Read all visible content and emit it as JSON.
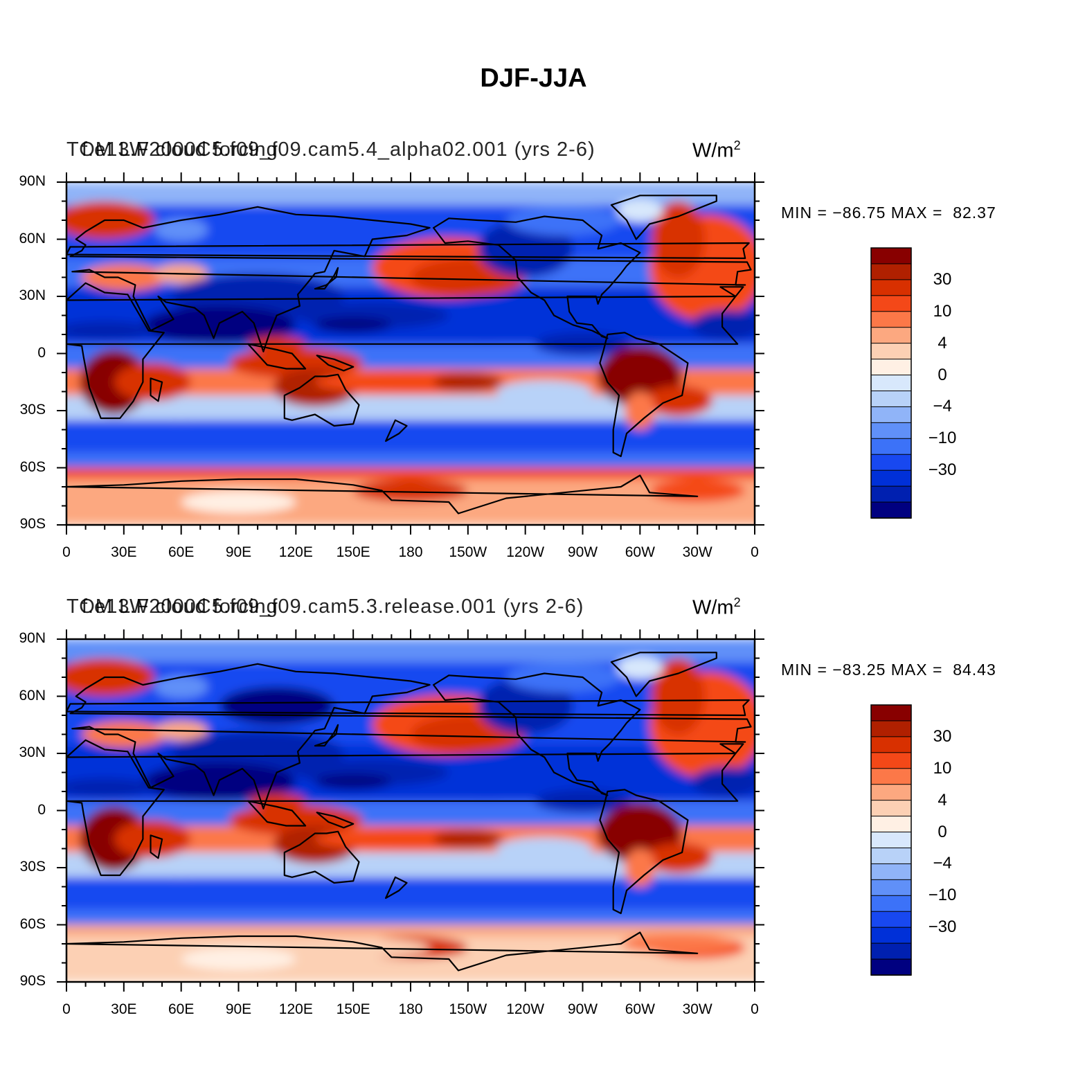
{
  "title": "DJF-JJA",
  "colors": [
    "#000080",
    "#0020b0",
    "#0030d8",
    "#1848f0",
    "#3c72f8",
    "#6090f8",
    "#90b4f8",
    "#b8d2f8",
    "#d8e8fc",
    "#fff0e4",
    "#fcd0b4",
    "#fca880",
    "#fc7848",
    "#f44818",
    "#d83000",
    "#b02000",
    "#880000"
  ],
  "levels": [
    "30",
    "10",
    "4",
    "0",
    "−4",
    "−10",
    "−30"
  ],
  "lat_ticks": [
    "90N",
    "60N",
    "30N",
    "0",
    "30S",
    "60S",
    "90S"
  ],
  "lon_ticks": [
    "0",
    "30E",
    "60E",
    "90E",
    "120E",
    "150E",
    "180",
    "150W",
    "120W",
    "90W",
    "60W",
    "30W",
    "0"
  ],
  "panels": [
    {
      "left_title": "TOM LW cloud forcing",
      "center_title": "f.e13.F2000C5.f09_f09.cam5.4_alpha02.001 (yrs 2-6)",
      "units": "W/m",
      "units_exp": "2",
      "minmax": "MIN = −86.75 MAX =  82.37"
    },
    {
      "left_title": "TOM LW cloud forcing",
      "center_title": "f.e13.F2000C5.f09_f09.cam5.3.release.001 (yrs 2-6)",
      "units": "W/m",
      "units_exp": "2",
      "minmax": "MIN = −83.25 MAX =  84.43"
    }
  ]
}
